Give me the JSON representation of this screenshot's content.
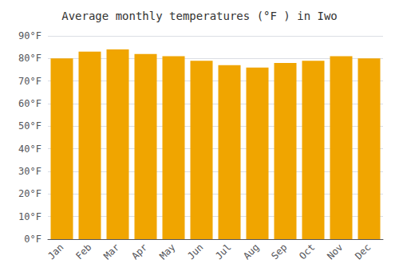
{
  "chart_data": {
    "type": "bar",
    "title": "Average monthly temperatures (°F ) in Iwo",
    "categories": [
      "Jan",
      "Feb",
      "Mar",
      "Apr",
      "May",
      "Jun",
      "Jul",
      "Aug",
      "Sep",
      "Oct",
      "Nov",
      "Dec"
    ],
    "values": [
      80,
      83,
      84,
      82,
      81,
      79,
      77,
      76,
      78,
      79,
      81,
      80
    ],
    "color": "#F0A500",
    "ylim": [
      0,
      90
    ],
    "yticks": [
      {
        "value": 0,
        "label": "0°F"
      },
      {
        "value": 10,
        "label": "10°F"
      },
      {
        "value": 20,
        "label": "20°F"
      },
      {
        "value": 30,
        "label": "30°F"
      },
      {
        "value": 40,
        "label": "40°F"
      },
      {
        "value": 50,
        "label": "50°F"
      },
      {
        "value": 60,
        "label": "60°F"
      },
      {
        "value": 70,
        "label": "70°F"
      },
      {
        "value": 80,
        "label": "80°F"
      },
      {
        "value": 90,
        "label": "90°F"
      }
    ],
    "grid": true
  }
}
